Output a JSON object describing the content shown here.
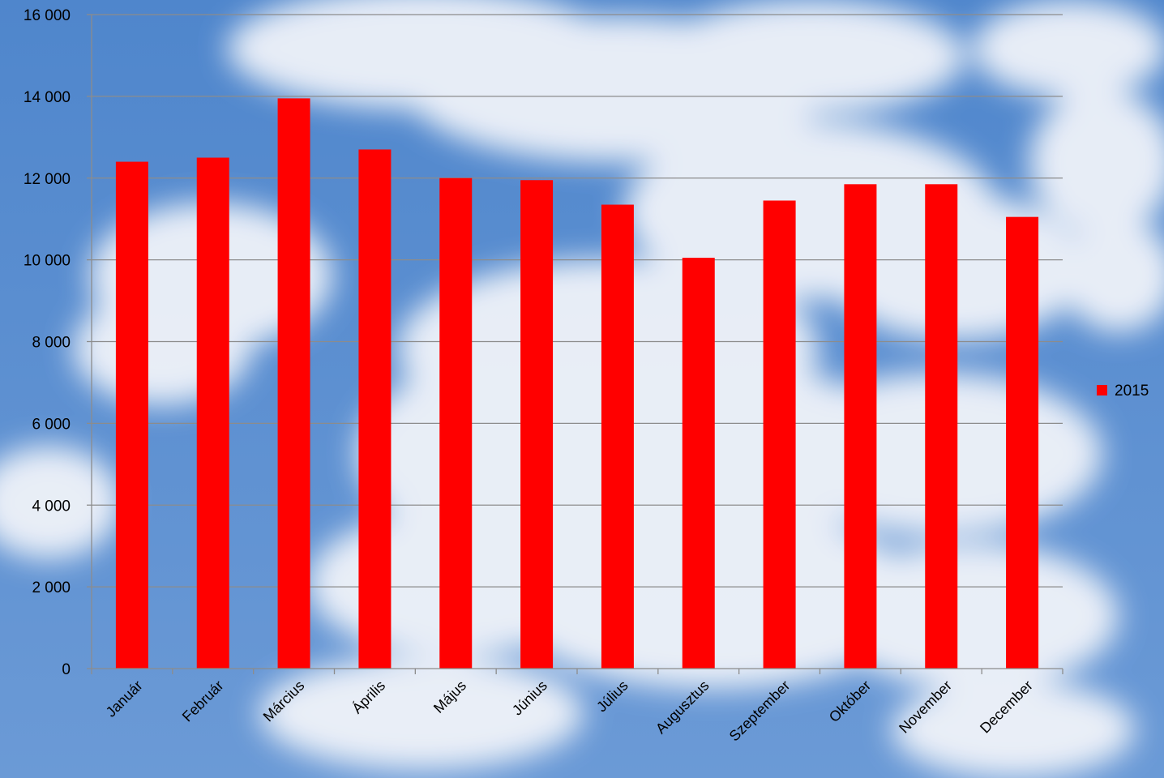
{
  "colors": {
    "bar": "#ff0000",
    "sky": "#5c8fd0",
    "grid": "#8c8c8c"
  },
  "chart_data": {
    "type": "bar",
    "categories": [
      "Január",
      "Február",
      "Március",
      "Április",
      "Május",
      "Június",
      "Július",
      "Augusztus",
      "Szeptember",
      "Október",
      "November",
      "December"
    ],
    "series": [
      {
        "name": "2015",
        "values": [
          12400,
          12500,
          13950,
          12700,
          12000,
          11950,
          11350,
          10050,
          11450,
          11850,
          11850,
          11050
        ]
      }
    ],
    "ylim": [
      0,
      16000
    ],
    "yticks": [
      0,
      2000,
      4000,
      6000,
      8000,
      10000,
      12000,
      14000,
      16000
    ],
    "ytick_labels": [
      "0",
      "2 000",
      "4 000",
      "6 000",
      "8 000",
      "10 000",
      "12 000",
      "14 000",
      "16 000"
    ],
    "title": "",
    "xlabel": "",
    "ylabel": "",
    "grid": true,
    "legend_position": "right"
  }
}
